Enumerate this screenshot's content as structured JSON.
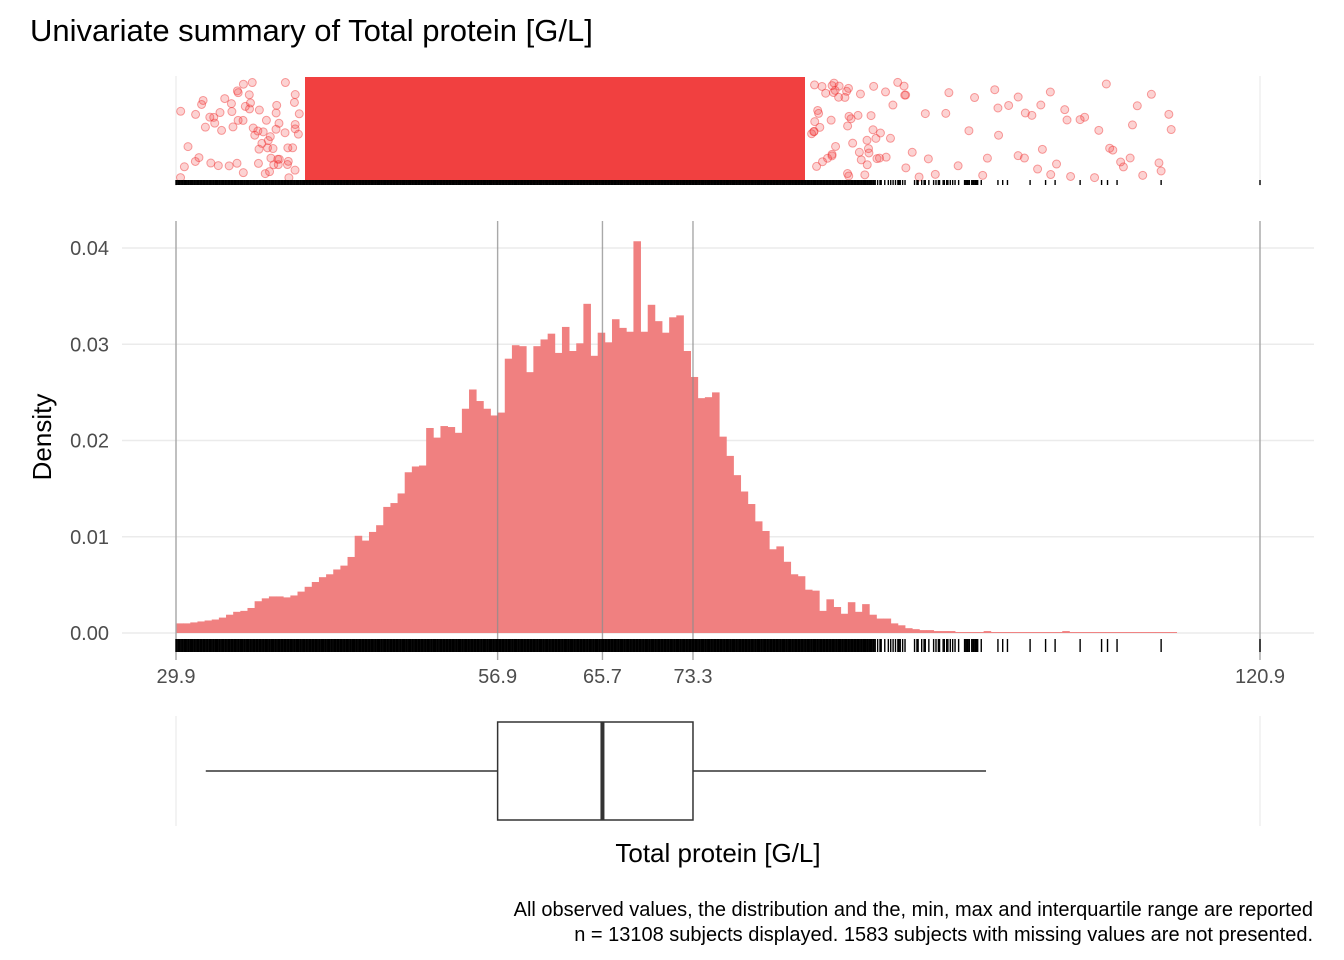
{
  "chart_data": {
    "type": "bar",
    "title": "Univariate summary of Total protein [G/L]",
    "xlabel": "Total protein [G/L]",
    "ylabel": "Density",
    "xlim": [
      29.9,
      120.9
    ],
    "ylim": [
      0,
      0.04
    ],
    "y_ticks": [
      "0.00",
      "0.01",
      "0.02",
      "0.03",
      "0.04"
    ],
    "x_ticks": [
      "29.9",
      "56.9",
      "65.7",
      "73.3",
      "120.9"
    ],
    "grid": true,
    "summary": {
      "min": 29.9,
      "q1": 56.9,
      "median": 65.7,
      "q3": 73.3,
      "max": 120.9,
      "whisker_low": 32.4,
      "whisker_high": 97.9
    },
    "bin_width": 0.6,
    "bin_start": 29.9,
    "series": [
      {
        "color": "#f08080",
        "values": [
          0.001,
          0.001,
          0.0011,
          0.0012,
          0.0013,
          0.0014,
          0.0016,
          0.0019,
          0.0022,
          0.0023,
          0.0026,
          0.0033,
          0.0036,
          0.0038,
          0.0038,
          0.0037,
          0.0039,
          0.0043,
          0.0048,
          0.0053,
          0.0058,
          0.0061,
          0.0066,
          0.007,
          0.0079,
          0.0101,
          0.0096,
          0.0105,
          0.0112,
          0.0131,
          0.0135,
          0.0145,
          0.0167,
          0.0173,
          0.0174,
          0.0213,
          0.0203,
          0.0215,
          0.0214,
          0.0208,
          0.0233,
          0.0253,
          0.0241,
          0.0233,
          0.0226,
          0.0229,
          0.0285,
          0.0299,
          0.0298,
          0.0271,
          0.0298,
          0.0305,
          0.0311,
          0.0291,
          0.0318,
          0.0293,
          0.0301,
          0.0342,
          0.0288,
          0.0312,
          0.0302,
          0.0326,
          0.0317,
          0.0313,
          0.0407,
          0.0313,
          0.0341,
          0.0324,
          0.0312,
          0.0328,
          0.033,
          0.0293,
          0.0266,
          0.0244,
          0.0245,
          0.025,
          0.0204,
          0.0184,
          0.0164,
          0.0147,
          0.0134,
          0.0116,
          0.0106,
          0.0087,
          0.009,
          0.0074,
          0.0061,
          0.0059,
          0.0045,
          0.0044,
          0.0023,
          0.0035,
          0.0027,
          0.002,
          0.0032,
          0.0022,
          0.003,
          0.0019,
          0.0015,
          0.0015,
          0.001,
          0.0008,
          0.0005,
          0.0004,
          0.0003,
          0.0003,
          0.0002,
          0.0002,
          0.0002,
          0.0001,
          0.0001,
          0.0001,
          0.0001,
          0.0002,
          0.0001,
          0.0001,
          0.0001,
          0.0001,
          0.0001,
          0.0001,
          0.0001,
          0.0001,
          0.0001,
          0.0001,
          0.0002,
          0.0001,
          0.0001,
          0.0001,
          0.0001,
          0.0001,
          0.0001,
          0.0001,
          0.0001,
          0.0001,
          0.0001,
          0.0001,
          0.0001,
          0.0001,
          0.0001,
          0.0001
        ]
      }
    ],
    "jitter": {
      "color": "#f03030",
      "n_points": 13108
    },
    "captions": [
      "All observed values, the distribution and the, min, max and interquartile range are reported",
      "n = 13108 subjects displayed. 1583 subjects with missing values are not presented."
    ]
  }
}
